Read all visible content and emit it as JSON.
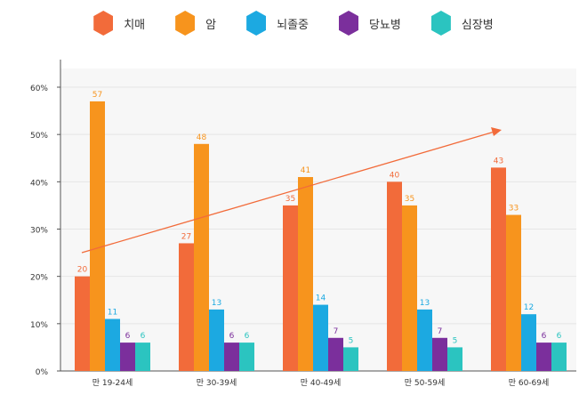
{
  "chart_data": {
    "type": "bar",
    "title": "",
    "xlabel": "",
    "ylabel": "",
    "ylim": [
      0,
      60
    ],
    "yticks": [
      "0%",
      "10%",
      "20%",
      "30%",
      "40%",
      "50%",
      "60%"
    ],
    "categories": [
      "만 19-24세",
      "만 30-39세",
      "만 40-49세",
      "만 50-59세",
      "만 60-69세"
    ],
    "series": [
      {
        "name": "치매",
        "color": "#f26b3a",
        "values": [
          20,
          27,
          35,
          40,
          43
        ]
      },
      {
        "name": "암",
        "color": "#f7941d",
        "values": [
          57,
          48,
          41,
          35,
          33
        ]
      },
      {
        "name": "뇌졸중",
        "color": "#1ca9e1",
        "values": [
          11,
          13,
          14,
          13,
          12
        ]
      },
      {
        "name": "당뇨병",
        "color": "#7b2f9c",
        "values": [
          6,
          6,
          7,
          7,
          6
        ]
      },
      {
        "name": "심장병",
        "color": "#2bc4c0",
        "values": [
          6,
          6,
          5,
          5,
          6
        ]
      }
    ],
    "legend_position": "top-center",
    "grid": true,
    "trend_arrow_color": "#f26b3a"
  }
}
